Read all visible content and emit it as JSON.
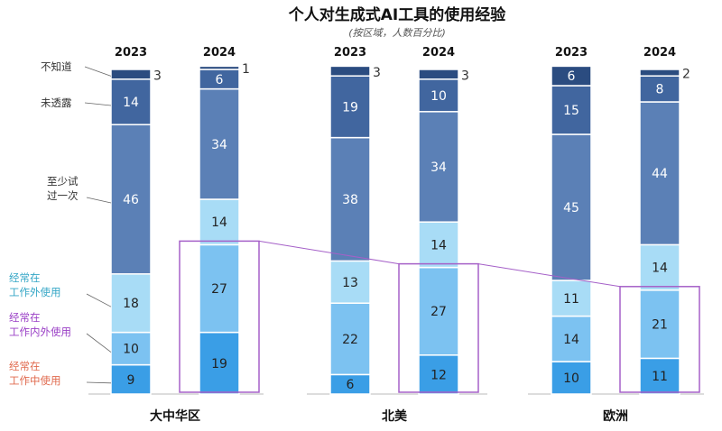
{
  "chart_data": {
    "type": "bar",
    "stacked": true,
    "title": "个人对生成式AI工具的使用经验",
    "subtitle": "(按区域，人数百分比)",
    "groups": [
      "大中华区",
      "北美",
      "欧洲"
    ],
    "years": [
      "2023",
      "2024"
    ],
    "segments": [
      {
        "name": "经常在工作中使用",
        "color": "#3a9ee6",
        "label_color": "#e06a4e"
      },
      {
        "name": "经常在工作内外使用",
        "color": "#7cc2f1",
        "label_color": "#9a3fc6"
      },
      {
        "name": "经常在工作外使用",
        "color": "#a8dcf6",
        "label_color": "#34a6c6"
      },
      {
        "name": "至少试过一次",
        "color": "#5b80b6",
        "label_color": "#333333"
      },
      {
        "name": "未透露",
        "color": "#41669f",
        "label_color": "#333333"
      },
      {
        "name": "不知道",
        "color": "#2b4c80",
        "label_color": "#333333"
      }
    ],
    "bars": [
      {
        "group": "大中华区",
        "year": "2023",
        "values": [
          9,
          10,
          18,
          46,
          14,
          3
        ]
      },
      {
        "group": "大中华区",
        "year": "2024",
        "values": [
          19,
          27,
          14,
          34,
          6,
          1
        ]
      },
      {
        "group": "北美",
        "year": "2023",
        "values": [
          6,
          22,
          13,
          38,
          19,
          3
        ]
      },
      {
        "group": "北美",
        "year": "2024",
        "values": [
          12,
          27,
          14,
          34,
          10,
          3
        ]
      },
      {
        "group": "欧洲",
        "year": "2023",
        "values": [
          10,
          14,
          11,
          45,
          15,
          6
        ]
      },
      {
        "group": "欧洲",
        "year": "2024",
        "values": [
          11,
          21,
          14,
          44,
          8,
          2
        ]
      }
    ],
    "highlight_color": "#a560c8",
    "ylim": [
      0,
      100
    ]
  }
}
